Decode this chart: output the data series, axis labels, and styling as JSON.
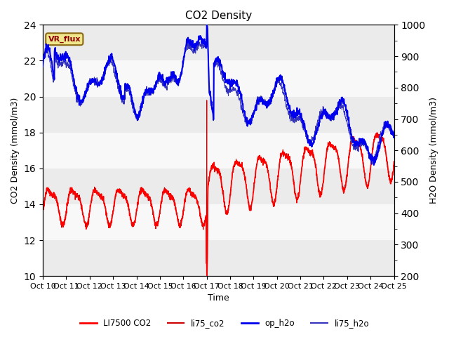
{
  "title": "CO2 Density",
  "xlabel": "Time",
  "ylabel_left": "CO2 Density (mmol/m3)",
  "ylabel_right": "H2O Density (mmol/m3)",
  "ylim_left": [
    10,
    24
  ],
  "ylim_right": [
    200,
    1000
  ],
  "background_color": "#ffffff",
  "plot_bg_color": "#ffffff",
  "grid_color": "#d8d8d8",
  "annotation_text": "VR_flux",
  "annotation_color": "#8B0000",
  "annotation_bg": "#f0e68c",
  "annotation_border": "#8B6914",
  "x_tick_labels": [
    "Oct 10",
    "Oct 11",
    "Oct 12",
    "Oct 13",
    "Oct 14",
    "Oct 15",
    "Oct 16",
    "Oct 17",
    "Oct 18",
    "Oct 19",
    "Oct 20",
    "Oct 21",
    "Oct 22",
    "Oct 23",
    "Oct 24",
    "Oct 25"
  ],
  "legend_entries": [
    "LI7500 CO2",
    "li75_co2",
    "op_h2o",
    "li75_h2o"
  ],
  "co2_color": "#ff0000",
  "li75_co2_color": "#cc0000",
  "op_h2o_color": "#0000ee",
  "li75_h2o_color": "#3333bb",
  "title_fontsize": 11,
  "axis_fontsize": 9,
  "tick_fontsize": 8
}
